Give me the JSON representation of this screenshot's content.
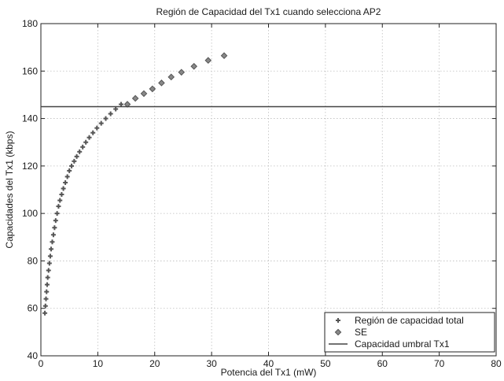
{
  "chart_data": {
    "type": "scatter",
    "title": "Región de Capacidad del Tx1 cuando selecciona AP2",
    "xlabel": "Potencia del Tx1 (mW)",
    "ylabel": "Capacidades del  Tx1 (kbps)",
    "xlim": [
      0,
      80
    ],
    "ylim": [
      40,
      180
    ],
    "xticks": [
      0,
      10,
      20,
      30,
      40,
      50,
      60,
      70,
      80
    ],
    "yticks": [
      40,
      60,
      80,
      100,
      120,
      140,
      160,
      180
    ],
    "grid": true,
    "legend_position": "bottom-right",
    "series": [
      {
        "name": "Región de capacidad total",
        "marker": "plus",
        "x": [
          0.7,
          0.8,
          0.9,
          1.0,
          1.1,
          1.2,
          1.35,
          1.5,
          1.65,
          1.8,
          2.0,
          2.2,
          2.4,
          2.6,
          2.85,
          3.1,
          3.35,
          3.65,
          3.95,
          4.3,
          4.65,
          5.0,
          5.4,
          5.85,
          6.3,
          6.8,
          7.35,
          7.9,
          8.5,
          9.15,
          9.85,
          10.6,
          11.4,
          12.25,
          13.15,
          14.1
        ],
        "y": [
          58,
          61,
          64,
          67,
          70,
          73,
          76,
          79,
          82,
          85,
          88,
          91,
          94,
          97,
          100,
          103,
          105.5,
          108,
          110.5,
          113,
          115.5,
          118,
          120,
          122,
          124,
          126,
          128,
          130,
          132,
          134,
          136,
          138,
          140,
          142,
          144,
          146
        ]
      },
      {
        "name": "SE",
        "marker": "diamond",
        "x": [
          15.2,
          16.6,
          18.1,
          19.6,
          21.2,
          22.9,
          24.7,
          26.9,
          29.4,
          32.2
        ],
        "y": [
          146,
          148.5,
          150.5,
          152.5,
          155,
          157.5,
          159.5,
          162,
          164.5,
          166.5
        ]
      },
      {
        "name": "Capacidad umbral Tx1",
        "marker": "line",
        "y_constant": 145,
        "x_range": [
          0,
          80
        ]
      }
    ],
    "colors": {
      "markers": "#555555",
      "threshold_line": "#444444",
      "grid": "#bdbdbd",
      "axes": "#222222"
    }
  }
}
